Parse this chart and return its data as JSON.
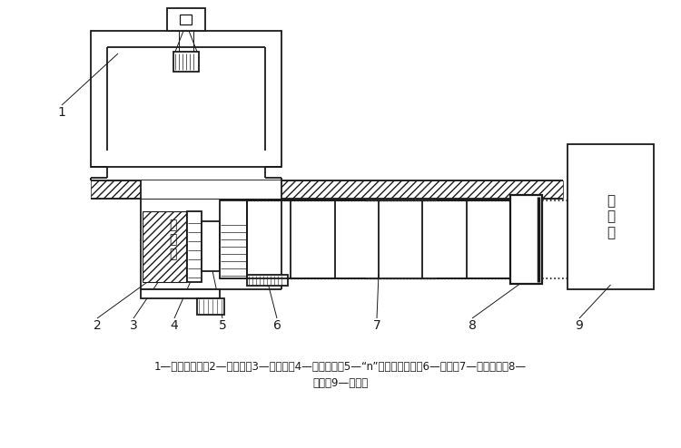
{
  "bg_color": "#ffffff",
  "line_color": "#1a1a1a",
  "caption_line1": "1—行车或吸车；2—出发井；3—后靶背；4—主顶油缸；5—“n”形或环形顶铁；6—导轨；7—混凝土管；8—",
  "caption_line2": "机头；9—接收井",
  "text_chufa": "出\n发\n井",
  "text_jieshou": "接\n收\n井",
  "labels": [
    "1",
    "2",
    "3",
    "4",
    "5",
    "6",
    "7",
    "8",
    "9"
  ]
}
